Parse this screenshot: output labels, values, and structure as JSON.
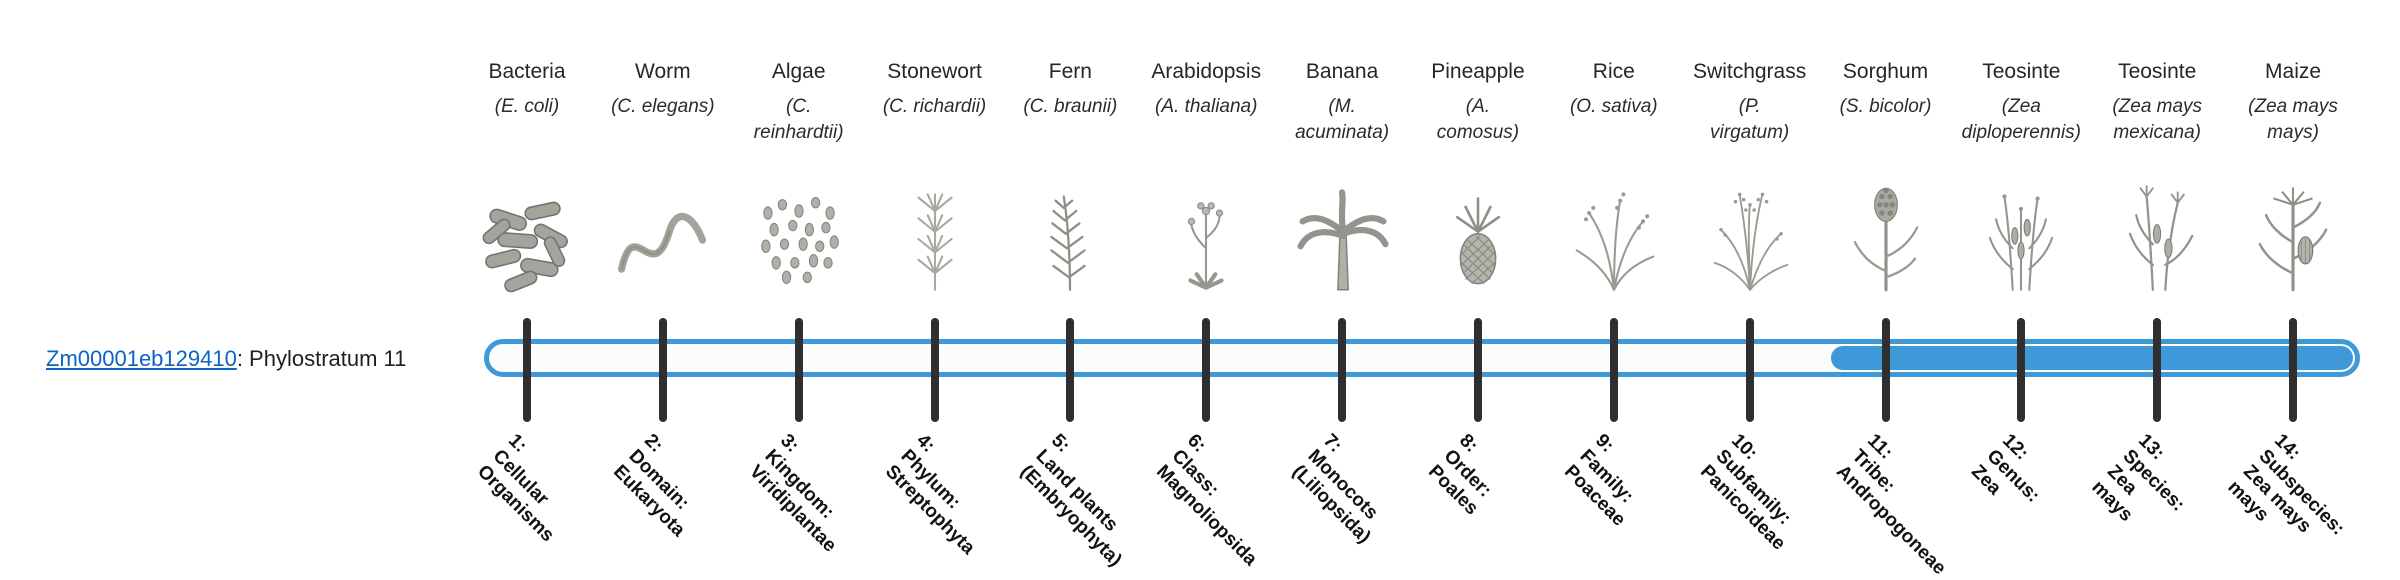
{
  "colors": {
    "accent_blue": "#3f99d8",
    "tick": "#2f2f2f",
    "link_blue": "#0b63c5",
    "bar_track": "#fafcfd"
  },
  "gene": {
    "id": "Zm00001eb129410",
    "suffix": ": Phylostratum 11",
    "phylostratum": 11
  },
  "timeline": {
    "total_strata": 14,
    "filled_strata_from": 11,
    "filled_strata_to": 14
  },
  "organisms": [
    {
      "stratum": 1,
      "name": "Bacteria",
      "sci_lines": [
        "(E. coli)"
      ],
      "icon": "bacteria",
      "stratum_lines": [
        "1:",
        "Cellular",
        "Organisms"
      ]
    },
    {
      "stratum": 2,
      "name": "Worm",
      "sci_lines": [
        "(C. elegans)"
      ],
      "icon": "worm",
      "stratum_lines": [
        "2:",
        "Domain:",
        "Eukaryota"
      ]
    },
    {
      "stratum": 3,
      "name": "Algae",
      "sci_lines": [
        "(C.",
        "reinhardtii)"
      ],
      "icon": "algae",
      "stratum_lines": [
        "3:",
        "Kingdom:",
        "Viridiplantae"
      ]
    },
    {
      "stratum": 4,
      "name": "Stonewort",
      "sci_lines": [
        "(C. richardii)"
      ],
      "icon": "stonewort",
      "stratum_lines": [
        "4:",
        "Phylum:",
        "Streptophyta"
      ]
    },
    {
      "stratum": 5,
      "name": "Fern",
      "sci_lines": [
        "(C. braunii)"
      ],
      "icon": "fern",
      "stratum_lines": [
        "5:",
        "Land plants",
        "(Embryophyta)"
      ]
    },
    {
      "stratum": 6,
      "name": "Arabidopsis",
      "sci_lines": [
        "(A. thaliana)"
      ],
      "icon": "arabidopsis",
      "stratum_lines": [
        "6:",
        "Class:",
        "Magnoliopsida"
      ]
    },
    {
      "stratum": 7,
      "name": "Banana",
      "sci_lines": [
        "(M.",
        "acuminata)"
      ],
      "icon": "banana",
      "stratum_lines": [
        "7:",
        "Monocots",
        "(Liliopsida)"
      ]
    },
    {
      "stratum": 8,
      "name": "Pineapple",
      "sci_lines": [
        "(A.",
        "comosus)"
      ],
      "icon": "pineapple",
      "stratum_lines": [
        "8:",
        "Order:",
        "Poales"
      ]
    },
    {
      "stratum": 9,
      "name": "Rice",
      "sci_lines": [
        "(O. sativa)"
      ],
      "icon": "rice",
      "stratum_lines": [
        "9:",
        "Family:",
        "Poaceae"
      ]
    },
    {
      "stratum": 10,
      "name": "Switchgrass",
      "sci_lines": [
        "(P.",
        "virgatum)"
      ],
      "icon": "switchgrass",
      "stratum_lines": [
        "10:",
        "Subfamily:",
        "Panicoideae"
      ]
    },
    {
      "stratum": 11,
      "name": "Sorghum",
      "sci_lines": [
        "(S. bicolor)"
      ],
      "icon": "sorghum",
      "stratum_lines": [
        "11:",
        "Tribe:",
        "Andropogoneae"
      ]
    },
    {
      "stratum": 12,
      "name": "Teosinte",
      "sci_lines": [
        "(Zea",
        "diploperennis)"
      ],
      "icon": "teosinte-diploperennis",
      "stratum_lines": [
        "12:",
        "Genus:",
        "Zea"
      ]
    },
    {
      "stratum": 13,
      "name": "Teosinte",
      "sci_lines": [
        "(Zea mays",
        "mexicana)"
      ],
      "icon": "teosinte-mexicana",
      "stratum_lines": [
        "13:",
        "Species:",
        "Zea",
        "mays"
      ]
    },
    {
      "stratum": 14,
      "name": "Maize",
      "sci_lines": [
        "(Zea mays",
        "mays)"
      ],
      "icon": "maize",
      "stratum_lines": [
        "14:",
        "Subspecies:",
        "Zea mays",
        "mays"
      ]
    }
  ]
}
